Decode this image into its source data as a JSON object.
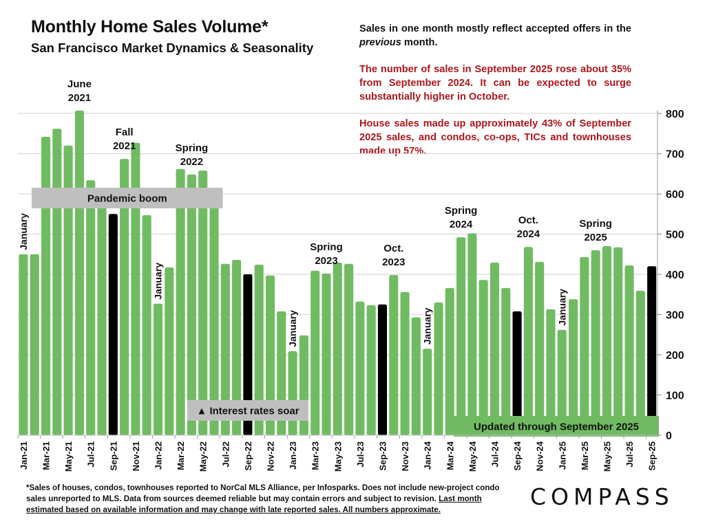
{
  "header": {
    "title": "Monthly Home Sales Volume*",
    "subtitle": "San Francisco Market Dynamics & Seasonality"
  },
  "notes": {
    "line1_a": "Sales in one month mostly reflect accepted offers in the ",
    "line1_italic": "previous",
    "line1_b": " month.",
    "para2": "The number of sales in September 2025 rose about 35% from September 2024. It can be expected to surge substantially higher in October.",
    "para3": "House sales made up approximately 43% of September 2025 sales, and condos, co-ops, TICs and townhouses made up 57%."
  },
  "footnote": {
    "text": "*Sales of houses, condos, townhouses reported to NorCal MLS Alliance, per Infosparks. Does not include new-project condo sales unreported to MLS. Data from sources deemed reliable but may contain errors and subject to revision. ",
    "underlined": "Last month estimated based on available information and may change with late reported sales. All numbers approximate."
  },
  "logo": "COMPASS",
  "colors": {
    "bar": "#70bb62",
    "highlight_bar": "#000000",
    "band_gray": "#bfbfbf",
    "band_green": "#70bb62",
    "note_red": "#b0161c",
    "grid": "#d9d9d9"
  },
  "chart_data": {
    "type": "bar",
    "title": "Monthly Home Sales Volume*",
    "xlabel": "",
    "ylabel": "",
    "ylim": [
      0,
      800
    ],
    "yticks": [
      0,
      100,
      200,
      300,
      400,
      500,
      600,
      700,
      800
    ],
    "y_axis_side": "right",
    "grid": true,
    "categories": [
      "Jan-21",
      "Feb-21",
      "Mar-21",
      "Apr-21",
      "May-21",
      "Jun-21",
      "Jul-21",
      "Aug-21",
      "Sep-21",
      "Oct-21",
      "Nov-21",
      "Dec-21",
      "Jan-22",
      "Feb-22",
      "Mar-22",
      "Apr-22",
      "May-22",
      "Jun-22",
      "Jul-22",
      "Aug-22",
      "Sep-22",
      "Oct-22",
      "Nov-22",
      "Dec-22",
      "Jan-23",
      "Feb-23",
      "Mar-23",
      "Apr-23",
      "May-23",
      "Jun-23",
      "Jul-23",
      "Aug-23",
      "Sep-23",
      "Oct-23",
      "Nov-23",
      "Dec-23",
      "Jan-24",
      "Feb-24",
      "Mar-24",
      "Apr-24",
      "May-24",
      "Jun-24",
      "Jul-24",
      "Aug-24",
      "Sep-24",
      "Oct-24",
      "Nov-24",
      "Dec-24",
      "Jan-25",
      "Feb-25",
      "Mar-25",
      "Apr-25",
      "May-25",
      "Jun-25",
      "Jul-25",
      "Aug-25",
      "Sep-25"
    ],
    "values": [
      450,
      450,
      742,
      762,
      720,
      807,
      634,
      580,
      550,
      687,
      727,
      547,
      327,
      417,
      662,
      648,
      658,
      567,
      426,
      436,
      400,
      424,
      397,
      308,
      209,
      248,
      409,
      402,
      429,
      426,
      332,
      323,
      325,
      398,
      356,
      293,
      215,
      330,
      366,
      492,
      502,
      386,
      429,
      366,
      308,
      468,
      431,
      313,
      262,
      338,
      443,
      460,
      470,
      467,
      422,
      359,
      420
    ],
    "highlighted": [
      "Sep-21",
      "Sep-22",
      "Sep-23",
      "Sep-24",
      "Sep-25"
    ],
    "tick_labels_every": 2,
    "annotations": [
      {
        "text": "January",
        "at": "Jan-21",
        "rotated": true
      },
      {
        "text": "June\n2021",
        "at": "Jun-21"
      },
      {
        "text": "Fall\n2021",
        "at": "Oct-21"
      },
      {
        "text": "Spring\n2022",
        "at": "Apr-22"
      },
      {
        "text": "January",
        "at": "Jan-22",
        "rotated": true
      },
      {
        "text": "January",
        "at": "Jan-23",
        "rotated": true
      },
      {
        "text": "Spring\n2023",
        "at": "Apr-23"
      },
      {
        "text": "Oct.\n2023",
        "at": "Oct-23"
      },
      {
        "text": "January",
        "at": "Jan-24",
        "rotated": true
      },
      {
        "text": "Spring\n2024",
        "at": "Apr-24"
      },
      {
        "text": "Oct.\n2024",
        "at": "Oct-24"
      },
      {
        "text": "January",
        "at": "Jan-25",
        "rotated": true
      },
      {
        "text": "Spring\n2025",
        "at": "Apr-25"
      }
    ],
    "bands": [
      {
        "text": "Pandemic boom",
        "from": "Feb-21",
        "to": "Jun-22",
        "level": 600,
        "style": "gray"
      },
      {
        "text": "▲ Interest rates soar",
        "from": "Apr-22",
        "to": "Feb-23",
        "level": 60,
        "style": "gray"
      },
      {
        "text": "Updated through September 2025",
        "from": "Apr-24",
        "to": "Sep-25",
        "level": 20,
        "style": "green"
      }
    ]
  }
}
